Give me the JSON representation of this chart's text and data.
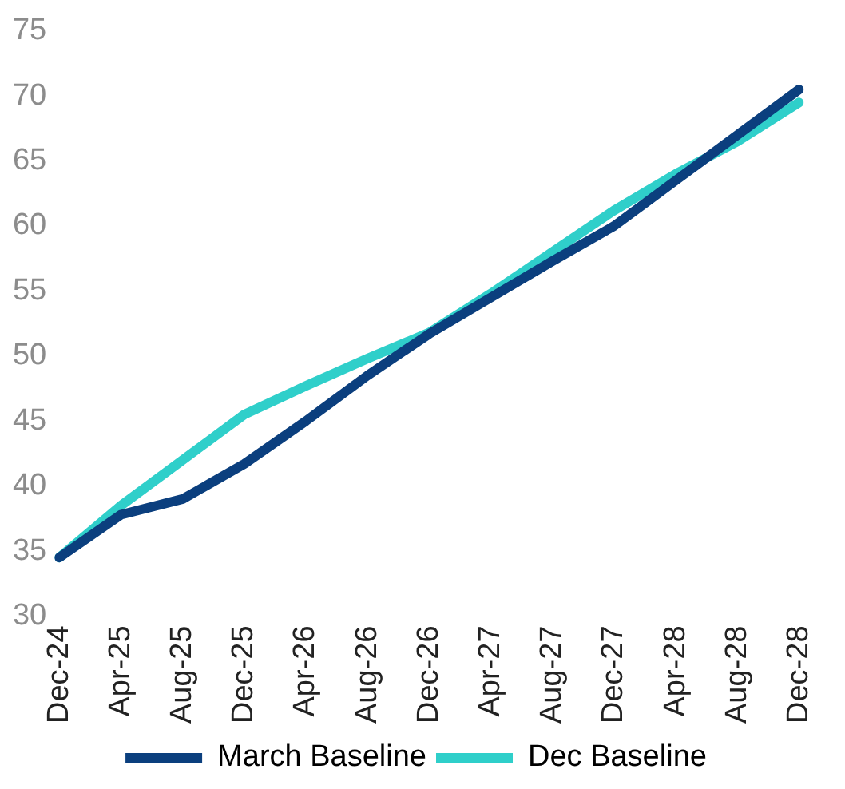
{
  "chart_data": {
    "type": "line",
    "categories": [
      "Dec-24",
      "Apr-25",
      "Aug-25",
      "Dec-25",
      "Apr-26",
      "Aug-26",
      "Dec-26",
      "Apr-27",
      "Aug-27",
      "Dec-27",
      "Apr-28",
      "Aug-28",
      "Dec-28"
    ],
    "series": [
      {
        "name": "March Baseline",
        "color": "#0b3f7e",
        "values": [
          34.5,
          37.8,
          39.0,
          41.7,
          45.0,
          48.5,
          51.7,
          54.5,
          57.3,
          60.0,
          63.5,
          67.0,
          70.5
        ]
      },
      {
        "name": "Dec Baseline",
        "color": "#2fcfca",
        "values": [
          34.5,
          38.5,
          42.0,
          45.5,
          47.7,
          49.8,
          51.8,
          54.8,
          58.0,
          61.2,
          64.0,
          66.5,
          69.5
        ]
      }
    ],
    "ylim": [
      30,
      75
    ],
    "yticks": [
      30,
      35,
      40,
      45,
      50,
      55,
      60,
      65,
      70,
      75
    ],
    "grid": false,
    "legend": "bottom",
    "marker": "none",
    "line_style": "solid"
  }
}
